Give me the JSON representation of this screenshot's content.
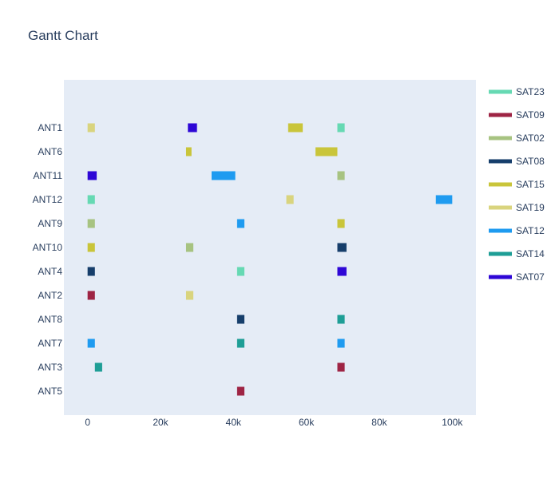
{
  "chart_data": {
    "type": "gantt",
    "title": "Gantt Chart",
    "xlabel": "",
    "ylabel": "",
    "xlim": [
      -6500,
      106500
    ],
    "x_ticks": [
      0,
      20000,
      40000,
      60000,
      80000,
      100000
    ],
    "x_tick_labels": [
      "0",
      "20k",
      "40k",
      "60k",
      "80k",
      "100k"
    ],
    "grid": false,
    "legend_position": "right",
    "categories": [
      "ANT1",
      "ANT6",
      "ANT11",
      "ANT12",
      "ANT9",
      "ANT10",
      "ANT4",
      "ANT2",
      "ANT8",
      "ANT7",
      "ANT3",
      "ANT5"
    ],
    "series": [
      {
        "name": "SAT23",
        "color": "#66d9b3",
        "tasks": [
          {
            "resource": "ANT1",
            "start": 68500,
            "end": 70500
          },
          {
            "resource": "ANT12",
            "start": 0,
            "end": 2000
          },
          {
            "resource": "ANT4",
            "start": 41000,
            "end": 43000
          }
        ]
      },
      {
        "name": "SAT09",
        "color": "#9e2444",
        "tasks": [
          {
            "resource": "ANT2",
            "start": 0,
            "end": 2000
          },
          {
            "resource": "ANT3",
            "start": 68500,
            "end": 70500
          },
          {
            "resource": "ANT5",
            "start": 41000,
            "end": 43000
          }
        ]
      },
      {
        "name": "SAT02",
        "color": "#a7c381",
        "tasks": [
          {
            "resource": "ANT11",
            "start": 68500,
            "end": 70500
          },
          {
            "resource": "ANT9",
            "start": 0,
            "end": 2000
          },
          {
            "resource": "ANT10",
            "start": 27000,
            "end": 29000
          }
        ]
      },
      {
        "name": "SAT08",
        "color": "#163e6b",
        "tasks": [
          {
            "resource": "ANT10",
            "start": 68500,
            "end": 71000
          },
          {
            "resource": "ANT4",
            "start": 0,
            "end": 2000
          },
          {
            "resource": "ANT8",
            "start": 41000,
            "end": 43000
          }
        ]
      },
      {
        "name": "SAT15",
        "color": "#c9c53a",
        "tasks": [
          {
            "resource": "ANT1",
            "start": 55000,
            "end": 59000
          },
          {
            "resource": "ANT6",
            "start": 27000,
            "end": 28500
          },
          {
            "resource": "ANT6",
            "start": 62500,
            "end": 68500
          },
          {
            "resource": "ANT9",
            "start": 68500,
            "end": 70500
          },
          {
            "resource": "ANT10",
            "start": 0,
            "end": 2000
          }
        ]
      },
      {
        "name": "SAT19",
        "color": "#d9d47e",
        "tasks": [
          {
            "resource": "ANT1",
            "start": 0,
            "end": 2000
          },
          {
            "resource": "ANT12",
            "start": 54500,
            "end": 56500
          },
          {
            "resource": "ANT2",
            "start": 27000,
            "end": 29000
          }
        ]
      },
      {
        "name": "SAT12",
        "color": "#1f9bf0",
        "tasks": [
          {
            "resource": "ANT11",
            "start": 34000,
            "end": 40500
          },
          {
            "resource": "ANT12",
            "start": 95500,
            "end": 100000
          },
          {
            "resource": "ANT9",
            "start": 41000,
            "end": 43000
          },
          {
            "resource": "ANT7",
            "start": 0,
            "end": 2000
          },
          {
            "resource": "ANT7",
            "start": 68500,
            "end": 70500
          }
        ]
      },
      {
        "name": "SAT14",
        "color": "#1e9e96",
        "tasks": [
          {
            "resource": "ANT8",
            "start": 68500,
            "end": 70500
          },
          {
            "resource": "ANT7",
            "start": 41000,
            "end": 43000
          },
          {
            "resource": "ANT3",
            "start": 2000,
            "end": 4000
          }
        ]
      },
      {
        "name": "SAT07",
        "color": "#2e07d6",
        "tasks": [
          {
            "resource": "ANT1",
            "start": 27500,
            "end": 30000
          },
          {
            "resource": "ANT11",
            "start": 0,
            "end": 2500
          },
          {
            "resource": "ANT4",
            "start": 68500,
            "end": 71000
          }
        ]
      }
    ]
  }
}
